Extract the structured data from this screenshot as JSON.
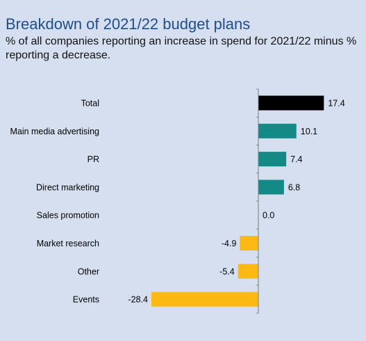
{
  "title": "Breakdown of 2021/22 budget plans",
  "subtitle": "% of all companies reporting an increase in spend for 2021/22 minus % reporting a decrease.",
  "colors": {
    "background": "#d5dfef",
    "title": "#1f4e8c",
    "total": "#000000",
    "positive": "#148a87",
    "negative": "#fdb913"
  },
  "chart_data": {
    "type": "bar",
    "orientation": "horizontal",
    "title": "Breakdown of 2021/22 budget plans",
    "subtitle": "% of all companies reporting an increase in spend for 2021/22 minus % reporting a decrease.",
    "categories": [
      "Total",
      "Main media advertising",
      "PR",
      "Direct marketing",
      "Sales promotion",
      "Market research",
      "Other",
      "Events"
    ],
    "values": [
      17.4,
      10.1,
      7.4,
      6.8,
      0.0,
      -4.9,
      -5.4,
      -28.4
    ],
    "value_labels": [
      "17.4",
      "10.1",
      "7.4",
      "6.8",
      "0.0",
      "-4.9",
      "-5.4",
      "-28.4"
    ],
    "xlim": [
      -28.4,
      17.4
    ],
    "grid": false,
    "legend": "none"
  }
}
